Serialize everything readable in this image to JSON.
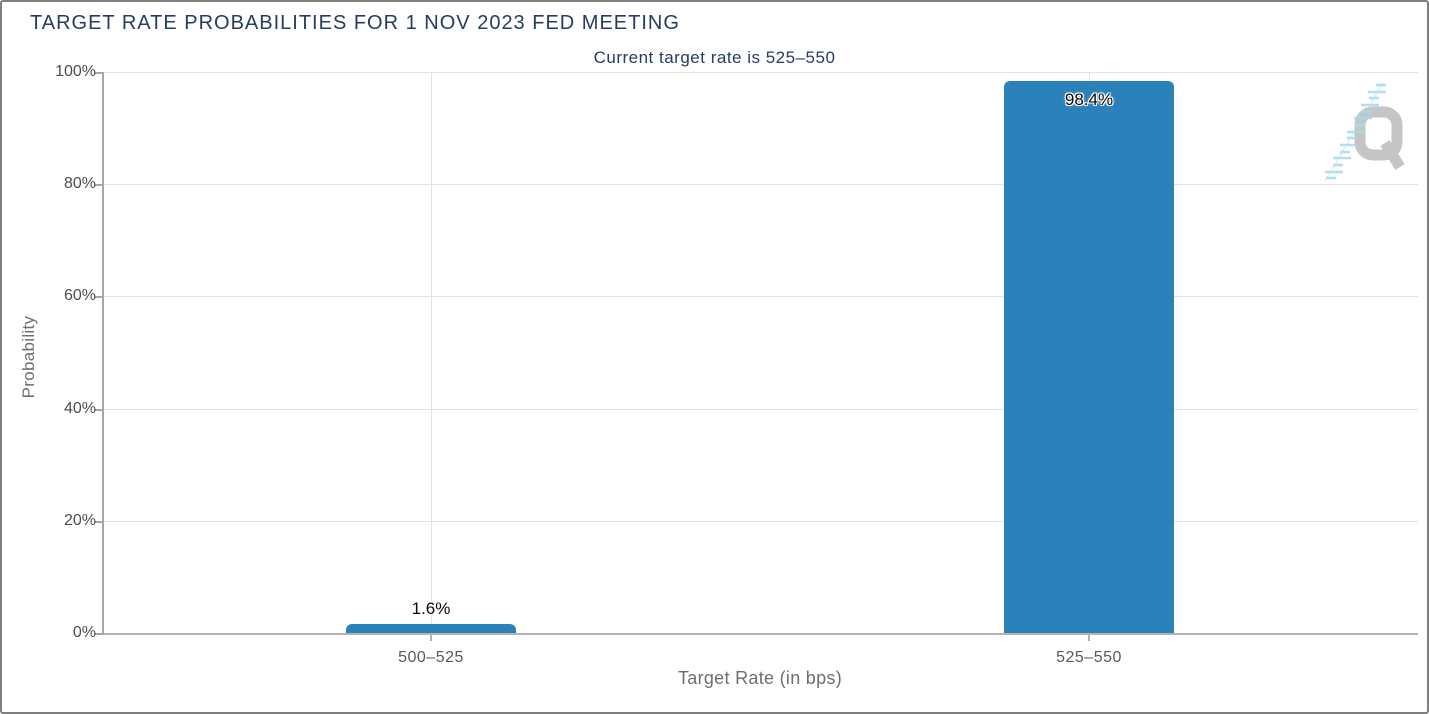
{
  "watermark": {
    "letter_name": "Q"
  },
  "colors": {
    "bar": "#2B81BA",
    "title_navy": "#263C63",
    "gridline": "#E2E2E2",
    "axis_line": "#B3B3B3",
    "tick_text": "#4D4D4D",
    "axis_title_text": "#6E6E6E",
    "watermark_gray": "#C5C5C5",
    "watermark_blue": "#A6D9EF"
  },
  "chart_data": {
    "type": "bar",
    "title": "TARGET RATE PROBABILITIES FOR 1 NOV 2023 FED MEETING",
    "subtitle": "Current target rate is 525–550",
    "categories": [
      "500–525",
      "525–550"
    ],
    "values": [
      1.6,
      98.4
    ],
    "value_labels": [
      "1.6%",
      "98.4%"
    ],
    "xlabel": "Target Rate (in bps)",
    "ylabel": "Probability",
    "ylim": [
      0,
      100
    ],
    "yticks": [
      0,
      20,
      40,
      60,
      80,
      100
    ],
    "ytick_labels": [
      "0%",
      "20%",
      "40%",
      "60%",
      "80%",
      "100%"
    ],
    "grid": true,
    "legend_position": "none",
    "bar_color": "#2B81BA"
  }
}
